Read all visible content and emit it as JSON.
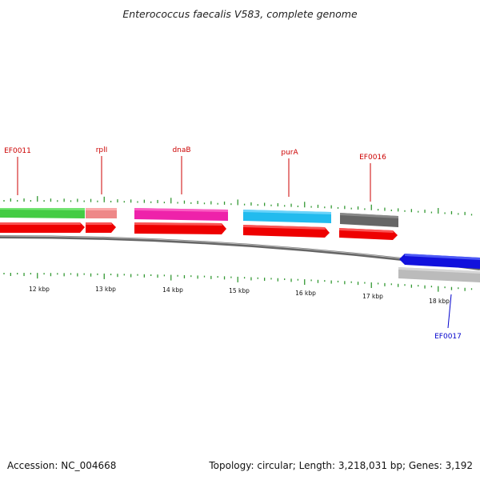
{
  "title": "Enterococcus faecalis V583, complete genome",
  "footer": {
    "accession": "Accession: NC_004668",
    "stats": "Topology: circular; Length: 3,218,031 bp; Genes: 3,192"
  },
  "colors": {
    "backbone": "#777777",
    "forward_label": "#cc0000",
    "reverse_label": "#0000cc",
    "ticks": "#339933",
    "cds": "#ee0000"
  },
  "scale": {
    "ticks": [
      {
        "label": "12 kbp"
      },
      {
        "label": "13 kbp"
      },
      {
        "label": "14 kbp"
      },
      {
        "label": "15 kbp"
      },
      {
        "label": "16 kbp"
      },
      {
        "label": "17 kbp"
      },
      {
        "label": "18 kbp"
      }
    ]
  },
  "genes": [
    {
      "name": "EF0011",
      "strand": "+",
      "color": "#44cc44"
    },
    {
      "name": "rplI",
      "strand": "+",
      "color": "#ee8888"
    },
    {
      "name": "dnaB",
      "strand": "+",
      "color": "#ee22aa"
    },
    {
      "name": "purA",
      "strand": "+",
      "color": "#22bbee"
    },
    {
      "name": "EF0016",
      "strand": "+",
      "color": "#666666"
    },
    {
      "name": "EF0017",
      "strand": "-",
      "color": "#1111dd"
    }
  ]
}
